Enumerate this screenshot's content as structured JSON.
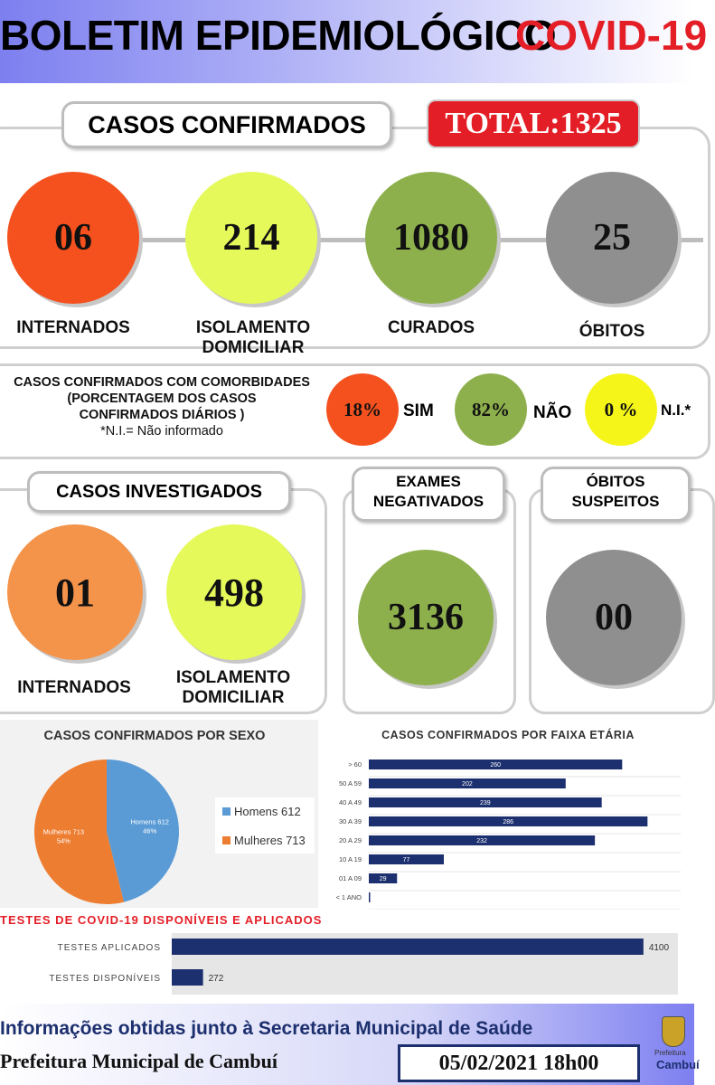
{
  "header": {
    "title": "BOLETIM EPIDEMIOLÓGICO",
    "covid": "COVID-19"
  },
  "confirmados": {
    "title": "CASOS CONFIRMADOS",
    "total": "TOTAL:1325",
    "items": [
      {
        "value": "06",
        "label": "INTERNADOS",
        "color": "#f4511e"
      },
      {
        "value": "214",
        "label": "ISOLAMENTO DOMICILIAR",
        "color": "#e5f95a"
      },
      {
        "value": "1080",
        "label": "CURADOS",
        "color": "#8db04c"
      },
      {
        "value": "25",
        "label": "ÓBITOS",
        "color": "#8f8f8f"
      }
    ]
  },
  "comorbidades": {
    "line1": "CASOS CONFIRMADOS COM COMORBIDADES",
    "line2": "(PORCENTAGEM DOS CASOS",
    "line3": "CONFIRMADOS DIÁRIOS )",
    "line4": "*N.I.= Não informado",
    "items": [
      {
        "value": "18%",
        "label": "SIM",
        "color": "#f4511e"
      },
      {
        "value": "82%",
        "label": "NÃO",
        "color": "#8db04c"
      },
      {
        "value": "0 %",
        "label": "N.I.*",
        "color": "#f5f51a"
      }
    ]
  },
  "investigados": {
    "title": "CASOS INVESTIGADOS",
    "items": [
      {
        "value": "01",
        "label": "INTERNADOS",
        "color": "#f4934a"
      },
      {
        "value": "498",
        "label": "ISOLAMENTO DOMICILIAR",
        "color": "#e5f95a"
      }
    ]
  },
  "exames": {
    "title_1": "EXAMES",
    "title_2": "NEGATIVADOS",
    "value": "3136",
    "color": "#8db04c"
  },
  "obitos_suspeitos": {
    "title_1": "ÓBITOS",
    "title_2": "SUSPEITOS",
    "value": "00",
    "color": "#8f8f8f"
  },
  "chart_data": [
    {
      "type": "pie",
      "title": "CASOS CONFIRMADOS POR SEXO",
      "categories": [
        "Homens",
        "Mulheres"
      ],
      "values": [
        612,
        713
      ],
      "percent_labels": [
        "46%",
        "54%"
      ],
      "legend": [
        "Homens 612",
        "Mulheres 713"
      ],
      "colors": [
        "#5b9bd5",
        "#ed7d31"
      ],
      "legend_position": "right"
    },
    {
      "type": "bar",
      "orientation": "horizontal",
      "title": "CASOS CONFIRMADOS POR FAIXA ETÁRIA",
      "categories": [
        "> 60",
        "50 A 59",
        "40 A 49",
        "30 A 39",
        "20 A 29",
        "10 A 19",
        "01 A 09",
        "< 1 ANO"
      ],
      "values": [
        260,
        202,
        239,
        286,
        232,
        77,
        29,
        1
      ],
      "value_labels": [
        "260",
        "202",
        "239",
        "286",
        "232",
        "77",
        "29",
        ""
      ],
      "xlim": [
        0,
        320
      ],
      "color": "#1c2f6e"
    },
    {
      "type": "bar",
      "orientation": "horizontal",
      "title": "TESTES DE COVID-19 DISPONÍVEIS E APLICADOS",
      "categories": [
        "TESTES APLICADOS",
        "TESTES DISPONÍVEIS"
      ],
      "values": [
        4100,
        272
      ],
      "xlim": [
        0,
        4400
      ],
      "color": "#1c2f6e"
    }
  ],
  "footer": {
    "line1": "Informações obtidas junto à Secretaria Municipal de Saúde",
    "line2": "Prefeitura Municipal de Cambuí",
    "datetime": "05/02/2021 18h00",
    "logo_text_1": "Prefeitura",
    "logo_text_2": "Cambuí"
  }
}
